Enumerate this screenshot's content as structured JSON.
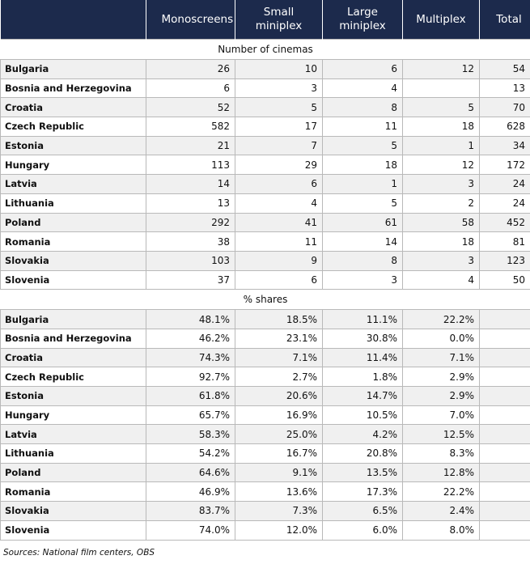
{
  "table": {
    "columns": [
      "Monoscreens",
      "Small miniplex",
      "Large miniplex",
      "Multiplex",
      "Total"
    ],
    "sections": [
      {
        "title": "Number of cinemas",
        "rows": [
          {
            "country": "Bulgaria",
            "cells": [
              "26",
              "10",
              "6",
              "12",
              "54"
            ]
          },
          {
            "country": "Bosnia and Herzegovina",
            "cells": [
              "6",
              "3",
              "4",
              null,
              "13"
            ]
          },
          {
            "country": "Croatia",
            "cells": [
              "52",
              "5",
              "8",
              "5",
              "70"
            ]
          },
          {
            "country": "Czech Republic",
            "cells": [
              "582",
              "17",
              "11",
              "18",
              "628"
            ]
          },
          {
            "country": "Estonia",
            "cells": [
              "21",
              "7",
              "5",
              "1",
              "34"
            ]
          },
          {
            "country": "Hungary",
            "cells": [
              "113",
              "29",
              "18",
              "12",
              "172"
            ]
          },
          {
            "country": "Latvia",
            "cells": [
              "14",
              "6",
              "1",
              "3",
              "24"
            ]
          },
          {
            "country": "Lithuania",
            "cells": [
              "13",
              "4",
              "5",
              "2",
              "24"
            ]
          },
          {
            "country": "Poland",
            "cells": [
              "292",
              "41",
              "61",
              "58",
              "452"
            ]
          },
          {
            "country": "Romania",
            "cells": [
              "38",
              "11",
              "14",
              "18",
              "81"
            ]
          },
          {
            "country": "Slovakia",
            "cells": [
              "103",
              "9",
              "8",
              "3",
              "123"
            ]
          },
          {
            "country": "Slovenia",
            "cells": [
              "37",
              "6",
              "3",
              "4",
              "50"
            ]
          }
        ]
      },
      {
        "title": "% shares",
        "rows": [
          {
            "country": "Bulgaria",
            "cells": [
              "48.1%",
              "18.5%",
              "11.1%",
              "22.2%",
              null
            ]
          },
          {
            "country": "Bosnia and Herzegovina",
            "cells": [
              "46.2%",
              "23.1%",
              "30.8%",
              "0.0%",
              null
            ]
          },
          {
            "country": "Croatia",
            "cells": [
              "74.3%",
              "7.1%",
              "11.4%",
              "7.1%",
              null
            ]
          },
          {
            "country": "Czech Republic",
            "cells": [
              "92.7%",
              "2.7%",
              "1.8%",
              "2.9%",
              null
            ]
          },
          {
            "country": "Estonia",
            "cells": [
              "61.8%",
              "20.6%",
              "14.7%",
              "2.9%",
              null
            ]
          },
          {
            "country": "Hungary",
            "cells": [
              "65.7%",
              "16.9%",
              "10.5%",
              "7.0%",
              null
            ]
          },
          {
            "country": "Latvia",
            "cells": [
              "58.3%",
              "25.0%",
              "4.2%",
              "12.5%",
              null
            ]
          },
          {
            "country": "Lithuania",
            "cells": [
              "54.2%",
              "16.7%",
              "20.8%",
              "8.3%",
              null
            ]
          },
          {
            "country": "Poland",
            "cells": [
              "64.6%",
              "9.1%",
              "13.5%",
              "12.8%",
              null
            ]
          },
          {
            "country": "Romania",
            "cells": [
              "46.9%",
              "13.6%",
              "17.3%",
              "22.2%",
              null
            ]
          },
          {
            "country": "Slovakia",
            "cells": [
              "83.7%",
              "7.3%",
              "6.5%",
              "2.4%",
              null
            ]
          },
          {
            "country": "Slovenia",
            "cells": [
              "74.0%",
              "12.0%",
              "6.0%",
              "8.0%",
              null
            ]
          }
        ]
      }
    ]
  },
  "source": "Sources: National film centers, OBS"
}
